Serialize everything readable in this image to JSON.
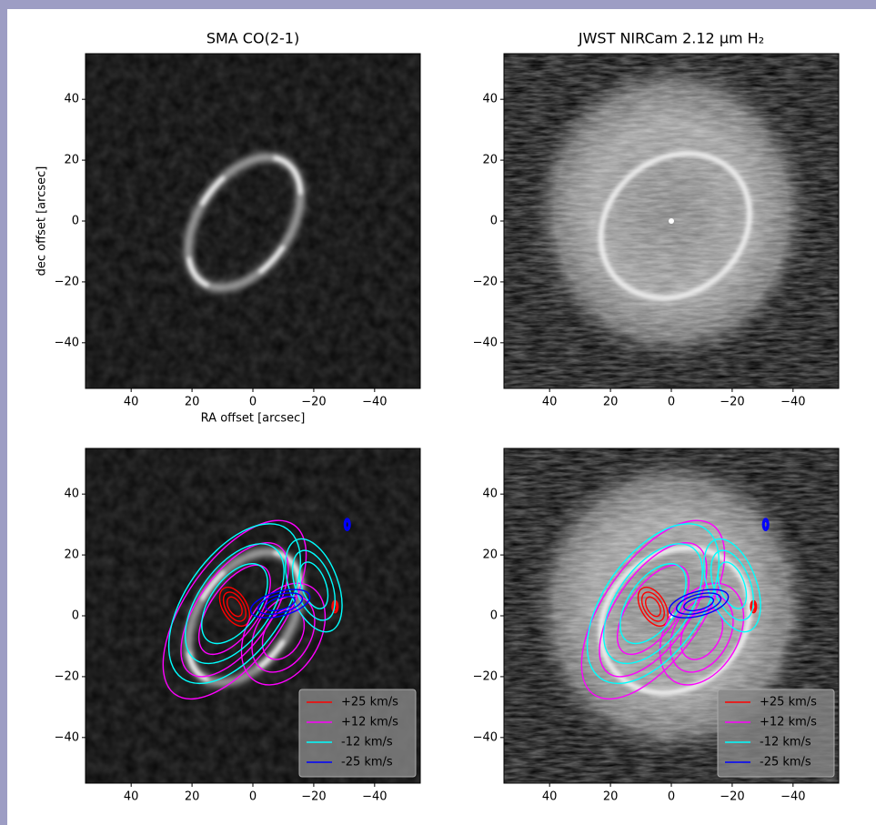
{
  "chart_data": [
    {
      "type": "image",
      "title": "SMA CO(2-1)",
      "xlabel": "RA offset [arcsec]",
      "ylabel": "dec offset [arcsec]",
      "xlim": [
        55,
        -55
      ],
      "ylim": [
        -55,
        55
      ],
      "xticks": [
        40,
        20,
        0,
        {
          "value": -20,
          "label": "−20"
        },
        {
          "value": -40,
          "label": "−40"
        }
      ],
      "yticks": [
        {
          "value": -40,
          "label": "−40"
        },
        {
          "value": -20,
          "label": "−20"
        },
        0,
        20,
        40
      ]
    },
    {
      "type": "image",
      "title": "JWST NIRCam 2.12 μm H₂",
      "xlim": [
        55,
        -55
      ],
      "ylim": [
        -55,
        55
      ],
      "xticks": [
        40,
        20,
        0,
        {
          "value": -20,
          "label": "−20"
        },
        {
          "value": -40,
          "label": "−40"
        }
      ],
      "yticks": [
        {
          "value": -40,
          "label": "−40"
        },
        {
          "value": -20,
          "label": "−20"
        },
        0,
        20,
        40
      ]
    },
    {
      "type": "image",
      "xlim": [
        55,
        -55
      ],
      "ylim": [
        -55,
        55
      ],
      "xticks": [
        40,
        20,
        0,
        {
          "value": -20,
          "label": "−20"
        },
        {
          "value": -40,
          "label": "−40"
        }
      ],
      "yticks": [
        {
          "value": -40,
          "label": "−40"
        },
        {
          "value": -20,
          "label": "−20"
        },
        0,
        20,
        40
      ],
      "legend": "lower right",
      "series": [
        {
          "name": "+25 km/s",
          "color": "#ff0000"
        },
        {
          "name": "+12 km/s",
          "color": "#ff00ff"
        },
        {
          "name": "-12 km/s",
          "color": "#00ffff"
        },
        {
          "name": "-25 km/s",
          "color": "#0000ff"
        }
      ]
    },
    {
      "type": "image",
      "xlim": [
        55,
        -55
      ],
      "ylim": [
        -55,
        55
      ],
      "xticks": [
        40,
        20,
        0,
        {
          "value": -20,
          "label": "−20"
        },
        {
          "value": -40,
          "label": "−40"
        }
      ],
      "yticks": [
        {
          "value": -40,
          "label": "−40"
        },
        {
          "value": -20,
          "label": "−20"
        },
        0,
        20,
        40
      ],
      "legend": "lower right",
      "series": [
        {
          "name": "+25 km/s",
          "color": "#ff0000"
        },
        {
          "name": "+12 km/s",
          "color": "#ff00ff"
        },
        {
          "name": "-12 km/s",
          "color": "#00ffff"
        },
        {
          "name": "-25 km/s",
          "color": "#0000ff"
        }
      ]
    }
  ]
}
